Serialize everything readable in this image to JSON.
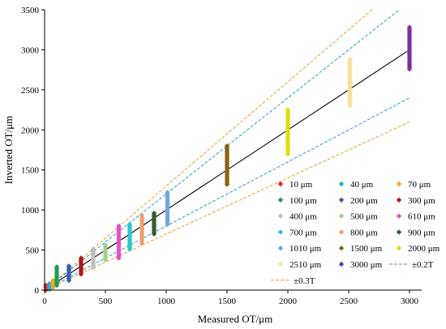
{
  "chart_data": {
    "type": "scatter",
    "xlabel": "Measured OT/μm",
    "ylabel": "Inverted OT/μm",
    "xlim": [
      0,
      3000
    ],
    "ylim": [
      0,
      3500
    ],
    "x_ticks": [
      "0",
      "500",
      "1000",
      "1500",
      "2000",
      "2500",
      "3000"
    ],
    "y_ticks": [
      "0",
      "500",
      "1000",
      "1500",
      "2000",
      "2500",
      "3000",
      "3500"
    ],
    "grid": false,
    "legend_position": "bottom-right inside",
    "series": [
      {
        "name": "10 μm",
        "color": "#e32626",
        "x": 10,
        "ymin": 0,
        "ymax": 60
      },
      {
        "name": "40 μm",
        "color": "#29a8e0",
        "x": 40,
        "ymin": 10,
        "ymax": 80
      },
      {
        "name": "70 μm",
        "color": "#f5a623",
        "x": 70,
        "ymin": 30,
        "ymax": 120
      },
      {
        "name": "100 μm",
        "color": "#1e9e50",
        "x": 100,
        "ymin": 60,
        "ymax": 290
      },
      {
        "name": "200 μm",
        "color": "#2f5fb3",
        "x": 200,
        "ymin": 120,
        "ymax": 300
      },
      {
        "name": "300 μm",
        "color": "#b01818",
        "x": 300,
        "ymin": 200,
        "ymax": 400
      },
      {
        "name": "400 μm",
        "color": "#bdbdbd",
        "x": 400,
        "ymin": 280,
        "ymax": 510
      },
      {
        "name": "500 μm",
        "color": "#9fcf86",
        "x": 500,
        "ymin": 380,
        "ymax": 560
      },
      {
        "name": "610 μm",
        "color": "#e64fc6",
        "x": 610,
        "ymin": 400,
        "ymax": 800
      },
      {
        "name": "700 μm",
        "color": "#30c5cc",
        "x": 700,
        "ymin": 510,
        "ymax": 820
      },
      {
        "name": "800 μm",
        "color": "#f0a070",
        "x": 800,
        "ymin": 580,
        "ymax": 930
      },
      {
        "name": "900 μm",
        "color": "#2f5f2f",
        "x": 900,
        "ymin": 700,
        "ymax": 960
      },
      {
        "name": "1010 μm",
        "color": "#6fa6d6",
        "x": 1010,
        "ymin": 820,
        "ymax": 1220
      },
      {
        "name": "1500 μm",
        "color": "#8a6314",
        "x": 1500,
        "ymin": 1320,
        "ymax": 1800
      },
      {
        "name": "2000 μm",
        "color": "#dede10",
        "x": 2000,
        "ymin": 1700,
        "ymax": 2250
      },
      {
        "name": "2510 μm",
        "color": "#fadf9a",
        "x": 2510,
        "ymin": 2300,
        "ymax": 2880
      },
      {
        "name": "3000 μm",
        "color": "#7a2fa6",
        "x": 3000,
        "ymin": 2760,
        "ymax": 3280
      }
    ],
    "reference_lines": [
      {
        "name": "",
        "slope": 1.0,
        "color": "#000000",
        "dashed": false
      },
      {
        "name": "±0.2T",
        "slopes": [
          1.2,
          0.8
        ],
        "color": "#1fa3d6",
        "dashed": true
      },
      {
        "name": "±0.3T",
        "slopes": [
          1.3,
          0.7
        ],
        "color": "#f0a020",
        "dashed": true
      }
    ]
  }
}
